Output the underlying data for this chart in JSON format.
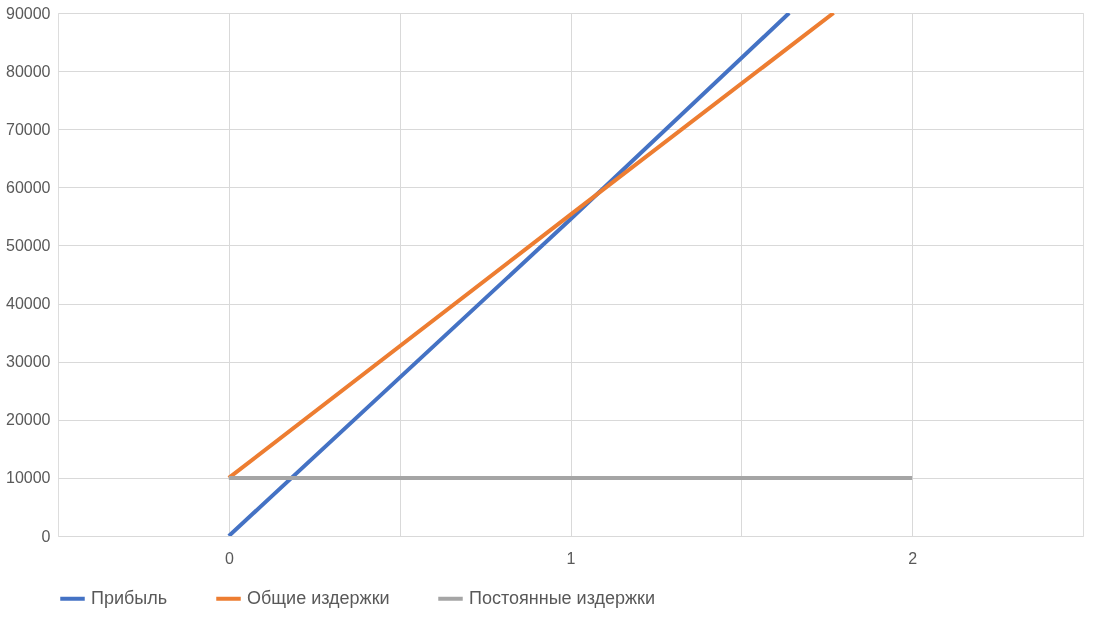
{
  "chart_data": {
    "type": "line",
    "series": [
      {
        "name": "Прибыль",
        "color": "#4472c4",
        "x": [
          0,
          1,
          1.64
        ],
        "values": [
          0,
          54500,
          90000
        ]
      },
      {
        "name": "Общие издержки",
        "color": "#ed7d31",
        "x": [
          0,
          1,
          1.77
        ],
        "values": [
          10000,
          55300,
          90000
        ]
      },
      {
        "name": "Постоянные издержки",
        "color": "#a5a5a5",
        "x": [
          0,
          1,
          2
        ],
        "values": [
          10000,
          10000,
          10000
        ]
      }
    ],
    "xlim": [
      -0.5,
      2.5
    ],
    "xticks": [
      0,
      {
        "value": 0.5,
        "label": null
      },
      1,
      {
        "value": 1.5,
        "label": null
      },
      2
    ],
    "ylim": [
      0,
      90000
    ],
    "yticks": [
      0,
      10000,
      20000,
      30000,
      40000,
      50000,
      60000,
      70000,
      80000,
      90000
    ],
    "grid": true,
    "legend": "bottom",
    "marker": "none",
    "line_style": "solid"
  }
}
